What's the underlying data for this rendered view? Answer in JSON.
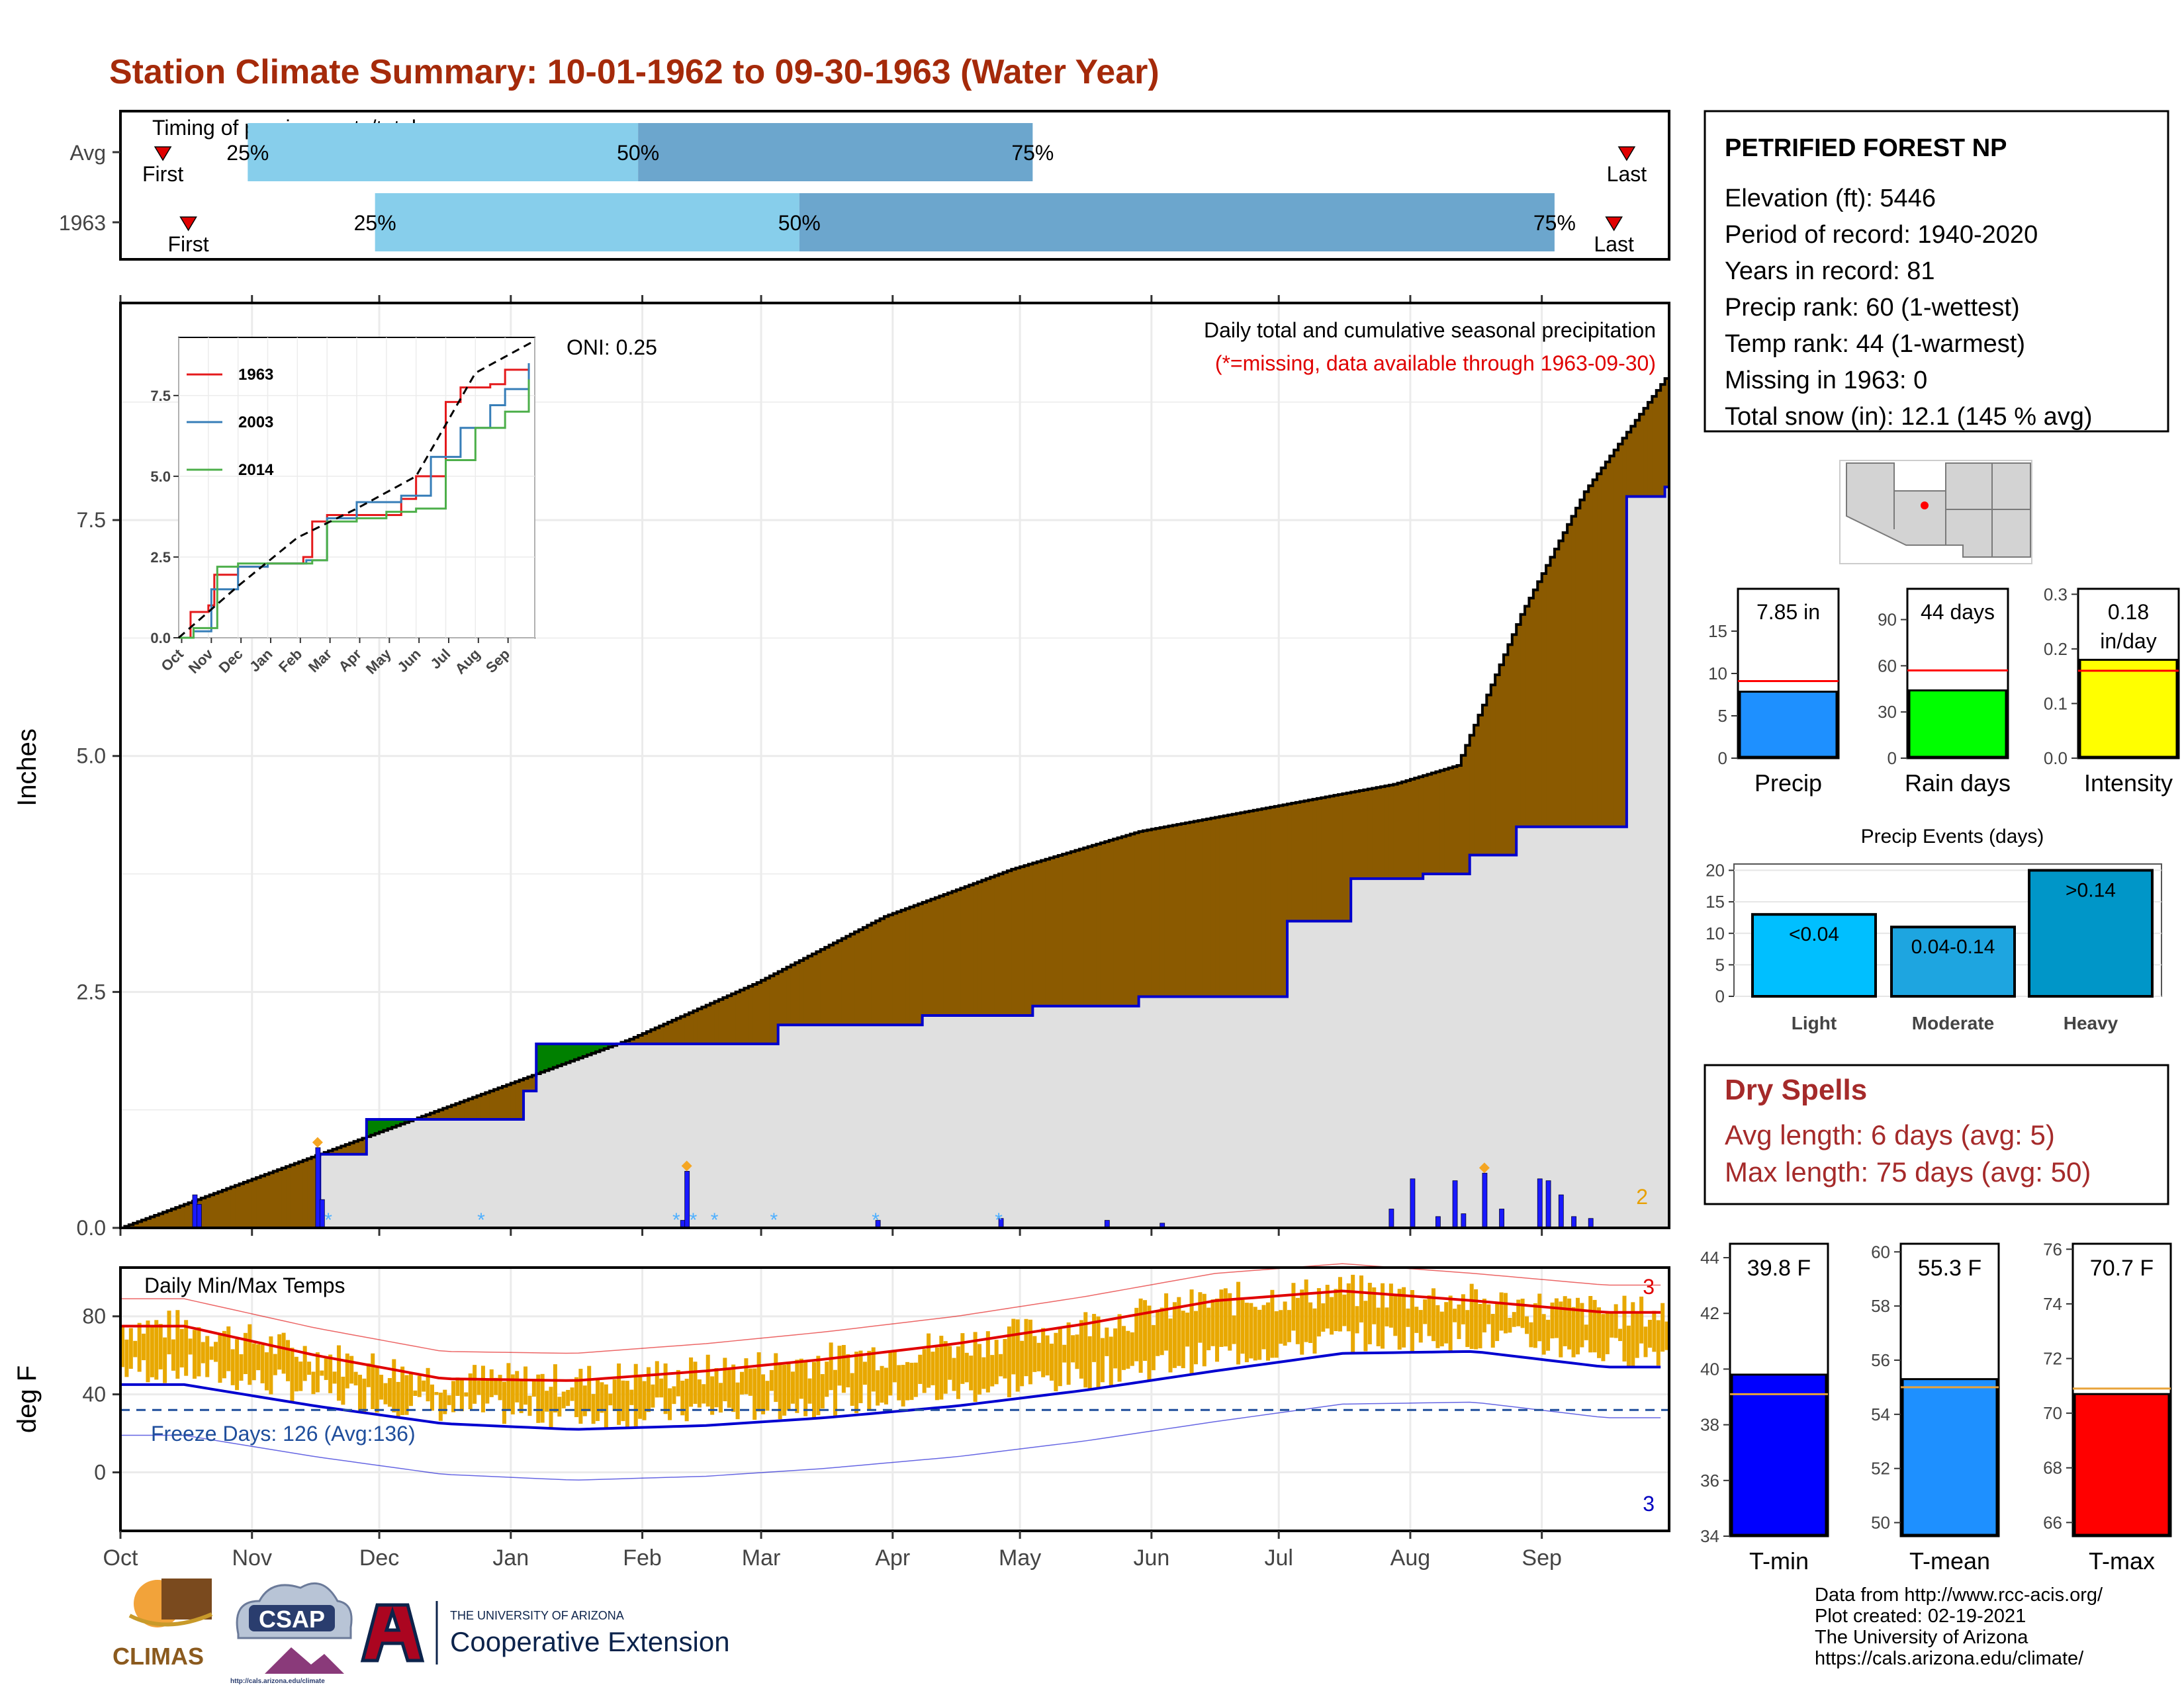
{
  "title": "Station Climate Summary: 10-01-1962 to 09-30-1963 (Water Year)",
  "timing": {
    "label": "Timing of precip events/totals",
    "rows": [
      {
        "name": "Avg",
        "first": "First",
        "last": "Last",
        "p25": "25%",
        "p50": "50%",
        "p75": "75%"
      },
      {
        "name": "1963",
        "first": "First",
        "last": "Last",
        "p25": "25%",
        "p50": "50%",
        "p75": "75%"
      }
    ],
    "colors": {
      "light": "#87ceeb",
      "dark": "#6ca6cd",
      "marker": "#e00000"
    }
  },
  "main": {
    "ylabel": "Inches",
    "oni": "ONI: 0.25",
    "title_right": "Daily total and cumulative seasonal precipitation",
    "missing_note": "(*=missing, data available through 1963-09-30)",
    "corner_count": "2",
    "colors": {
      "avg_fill": "#8b5a00",
      "above_fill": "#008000",
      "cum_line": "#0000cd",
      "grey": "#e0e0e0",
      "daily": "#1a1aff"
    }
  },
  "inset": {
    "legend": [
      {
        "name": "1963",
        "color": "#e41a1c"
      },
      {
        "name": "2003",
        "color": "#377eb8"
      },
      {
        "name": "2014",
        "color": "#4daf4a"
      }
    ]
  },
  "temps": {
    "label": "Daily Min/Max Temps",
    "ylabel": "deg F",
    "freeze": "Freeze Days: 126 (Avg:136)",
    "count_max": "3",
    "count_min": "3",
    "colors": {
      "bars": "#e8a800",
      "max_line": "#e00000",
      "min_line": "#0000d0",
      "freeze": "#1f4e9c"
    }
  },
  "months": [
    "Oct",
    "Nov",
    "Dec",
    "Jan",
    "Feb",
    "Mar",
    "Apr",
    "May",
    "Jun",
    "Jul",
    "Aug",
    "Sep"
  ],
  "station": {
    "name": "PETRIFIED FOREST NP",
    "lines": [
      "Elevation (ft): 5446",
      "Period of record: 1940-2020",
      "Years in record: 81",
      "Precip rank: 60 (1-wettest)",
      "Temp rank: 44 (1-warmest)",
      "Missing in 1963: 0",
      "Total snow (in): 12.1 (145 % avg)"
    ]
  },
  "summary_bars": [
    {
      "label": "Precip",
      "value_text": "7.85 in",
      "value": 7.85,
      "avg": 9.1,
      "max": 20,
      "ticks": [
        0,
        5,
        10,
        15
      ],
      "color": "#1e90ff"
    },
    {
      "label": "Rain days",
      "value_text": "44 days",
      "value": 44,
      "avg": 57,
      "max": 110,
      "ticks": [
        0,
        30,
        60,
        90
      ],
      "color": "#00ff00"
    },
    {
      "label": "Intensity",
      "value_text": "0.18 in/day",
      "value": 0.18,
      "avg": 0.16,
      "max": 0.31,
      "ticks": [
        "0.0",
        "0.1",
        "0.2",
        "0.3"
      ],
      "color": "#ffff00"
    }
  ],
  "events": {
    "title": "Precip Events (days)",
    "categories": [
      "Light",
      "Moderate",
      "Heavy"
    ],
    "values": [
      13,
      11,
      20
    ],
    "labels": [
      "<0.04",
      "0.04-0.14",
      ">0.14"
    ],
    "ticks": [
      0,
      5,
      10,
      15,
      20
    ],
    "colors": [
      "#00bfff",
      "#1ea5e0",
      "#0096c8"
    ]
  },
  "dry": {
    "title": "Dry Spells",
    "avg": "Avg length: 6 days (avg: 5)",
    "max": "Max length: 75 days (avg: 50)",
    "color": "#a52a2a"
  },
  "temp_bars": [
    {
      "label": "T-min",
      "value_text": "39.8 F",
      "value": 39.8,
      "avg": 39.1,
      "min": 34,
      "max": 44.5,
      "ticks": [
        34,
        36,
        38,
        40,
        42,
        44
      ],
      "color": "#0000ff"
    },
    {
      "label": "T-mean",
      "value_text": "55.3 F",
      "value": 55.3,
      "avg": 55.0,
      "min": 49.5,
      "max": 60.3,
      "ticks": [
        50,
        52,
        54,
        56,
        58,
        60
      ],
      "color": "#1e90ff"
    },
    {
      "label": "T-max",
      "value_text": "70.7 F",
      "value": 70.7,
      "avg": 70.9,
      "min": 65.5,
      "max": 76.2,
      "ticks": [
        66,
        68,
        70,
        72,
        74,
        76
      ],
      "color": "#ff0000"
    }
  ],
  "footer": [
    "Data from http://www.rcc-acis.org/",
    "Plot created: 02-19-2021",
    "The University of Arizona",
    "https://cals.arizona.edu/climate/"
  ],
  "logos": {
    "climas": "CLIMAS",
    "csap": "CSAP",
    "csap_url": "http://cals.arizona.edu/climate",
    "ua_small": "THE UNIVERSITY OF ARIZONA",
    "ua_big": "Cooperative Extension"
  },
  "chart_data": {
    "type": "area",
    "title": "Daily total and cumulative seasonal precipitation",
    "xlabel": "",
    "ylabel": "Inches",
    "x_categories": [
      "Oct",
      "Nov",
      "Dec",
      "Jan",
      "Feb",
      "Mar",
      "Apr",
      "May",
      "Jun",
      "Jul",
      "Aug",
      "Sep"
    ],
    "ylim": [
      0,
      9.8
    ],
    "series": [
      {
        "name": "1963",
        "x_day": [
          0,
          45,
          47,
          58,
          94,
          95,
          98,
          137,
          155,
          189,
          215,
          230,
          240,
          275,
          290,
          307,
          318,
          329,
          336,
          355,
          364
        ],
        "y": [
          0,
          0,
          0.78,
          1.15,
          1.15,
          1.45,
          1.95,
          1.95,
          2.15,
          2.25,
          2.35,
          2.35,
          2.45,
          3.25,
          3.7,
          3.75,
          3.95,
          4.25,
          4.25,
          7.75,
          7.85
        ]
      },
      {
        "name": "Avg",
        "x_day": [
          0,
          30,
          60,
          90,
          120,
          150,
          180,
          210,
          240,
          270,
          300,
          315,
          330,
          345,
          364
        ],
        "y": [
          0,
          0.5,
          1.0,
          1.5,
          2.0,
          2.6,
          3.3,
          3.8,
          4.2,
          4.45,
          4.7,
          4.9,
          6.5,
          7.8,
          9.0
        ]
      }
    ],
    "daily_events": [
      {
        "day": 17,
        "value": 0.35
      },
      {
        "day": 18,
        "value": 0.25
      },
      {
        "day": 46,
        "value": 0.85
      },
      {
        "day": 47,
        "value": 0.3
      },
      {
        "day": 132,
        "value": 0.08
      },
      {
        "day": 133,
        "value": 0.6
      },
      {
        "day": 178,
        "value": 0.08
      },
      {
        "day": 207,
        "value": 0.1
      },
      {
        "day": 232,
        "value": 0.08
      },
      {
        "day": 245,
        "value": 0.05
      },
      {
        "day": 299,
        "value": 0.2
      },
      {
        "day": 304,
        "value": 0.52
      },
      {
        "day": 310,
        "value": 0.12
      },
      {
        "day": 314,
        "value": 0.5
      },
      {
        "day": 316,
        "value": 0.15
      },
      {
        "day": 321,
        "value": 0.58
      },
      {
        "day": 325,
        "value": 0.2
      },
      {
        "day": 334,
        "value": 0.52
      },
      {
        "day": 336,
        "value": 0.5
      },
      {
        "day": 339,
        "value": 0.35
      },
      {
        "day": 342,
        "value": 0.12
      },
      {
        "day": 346,
        "value": 0.1
      }
    ],
    "inset_series": [
      {
        "name": "1963",
        "x_month": [
          0,
          0.4,
          1,
          1.2,
          2,
          3,
          4.2,
          4.5,
          5,
          7.5,
          8,
          9,
          9.5,
          10.5,
          11,
          11.8
        ],
        "y": [
          0,
          0.8,
          1.0,
          1.95,
          2.2,
          2.3,
          2.5,
          3.6,
          3.8,
          4.3,
          5.0,
          7.3,
          7.75,
          7.85,
          8.3,
          8.4
        ]
      },
      {
        "name": "2003",
        "x_month": [
          0,
          0.5,
          1.1,
          2,
          3,
          4.3,
          5,
          6,
          7,
          7.5,
          8.5,
          9.5,
          10.5,
          11,
          11.8
        ],
        "y": [
          0,
          0.2,
          1.5,
          2.2,
          2.3,
          2.4,
          3.7,
          4.2,
          4.2,
          4.4,
          5.6,
          6.5,
          7.2,
          7.7,
          8.5
        ]
      },
      {
        "name": "2014",
        "x_month": [
          0,
          0.5,
          1.3,
          2,
          3,
          4.5,
          5,
          6,
          7,
          8,
          9,
          10,
          11,
          11.8
        ],
        "y": [
          0,
          0.3,
          2.2,
          2.3,
          2.3,
          2.4,
          3.6,
          3.7,
          3.9,
          4.0,
          5.5,
          6.5,
          7.0,
          8.0
        ]
      },
      {
        "name": "Avg",
        "x_month": [
          0,
          2,
          4,
          6,
          8,
          10,
          12
        ],
        "y": [
          0,
          1.6,
          3.1,
          4.0,
          5.0,
          8.2,
          9.2
        ]
      }
    ],
    "temps": {
      "ylim": [
        -30,
        105
      ],
      "avg_max_monthly": [
        75,
        60,
        48,
        47,
        52,
        58,
        66,
        76,
        88,
        93,
        88,
        82
      ],
      "avg_min_monthly": [
        45,
        34,
        25,
        22,
        24,
        28,
        34,
        42,
        52,
        61,
        62,
        54
      ],
      "freeze_threshold": 32
    }
  }
}
